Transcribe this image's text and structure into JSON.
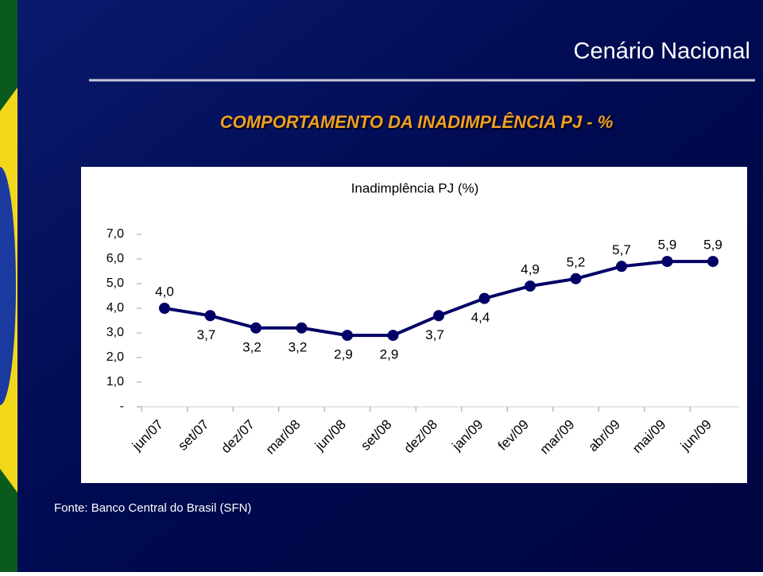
{
  "header": {
    "title": "Cenário Nacional",
    "subtitle": "COMPORTAMENTO DA INADIMPLÊNCIA PJ - %"
  },
  "chart_data": {
    "type": "line",
    "title": "Inadimplência PJ (%)",
    "categories": [
      "jun/07",
      "set/07",
      "dez/07",
      "mar/08",
      "jun/08",
      "set/08",
      "dez/08",
      "jan/09",
      "fev/09",
      "mar/09",
      "abr/09",
      "mai/09",
      "jun/09"
    ],
    "series": [
      {
        "name": "Inadimplência PJ",
        "color": "#000066",
        "values": [
          4.0,
          3.7,
          3.2,
          3.2,
          2.9,
          2.9,
          3.7,
          4.4,
          4.9,
          5.2,
          5.7,
          5.9,
          5.9
        ],
        "value_labels": [
          "4,0",
          "3,7",
          "3,2",
          "3,2",
          "2,9",
          "2,9",
          "3,7",
          "4,4",
          "4,9",
          "5,2",
          "5,7",
          "5,9",
          "5,9"
        ]
      }
    ],
    "ylim": [
      0,
      7
    ],
    "yticks": [
      {
        "value": 0,
        "label": "-"
      },
      {
        "value": 1,
        "label": "1,0"
      },
      {
        "value": 2,
        "label": "2,0"
      },
      {
        "value": 3,
        "label": "3,0"
      },
      {
        "value": 4,
        "label": "4,0"
      },
      {
        "value": 5,
        "label": "5,0"
      },
      {
        "value": 6,
        "label": "6,0"
      },
      {
        "value": 7,
        "label": "7,0"
      }
    ],
    "grid": false
  },
  "footer": {
    "source": "Fonte: Banco Central do Brasil (SFN)"
  }
}
